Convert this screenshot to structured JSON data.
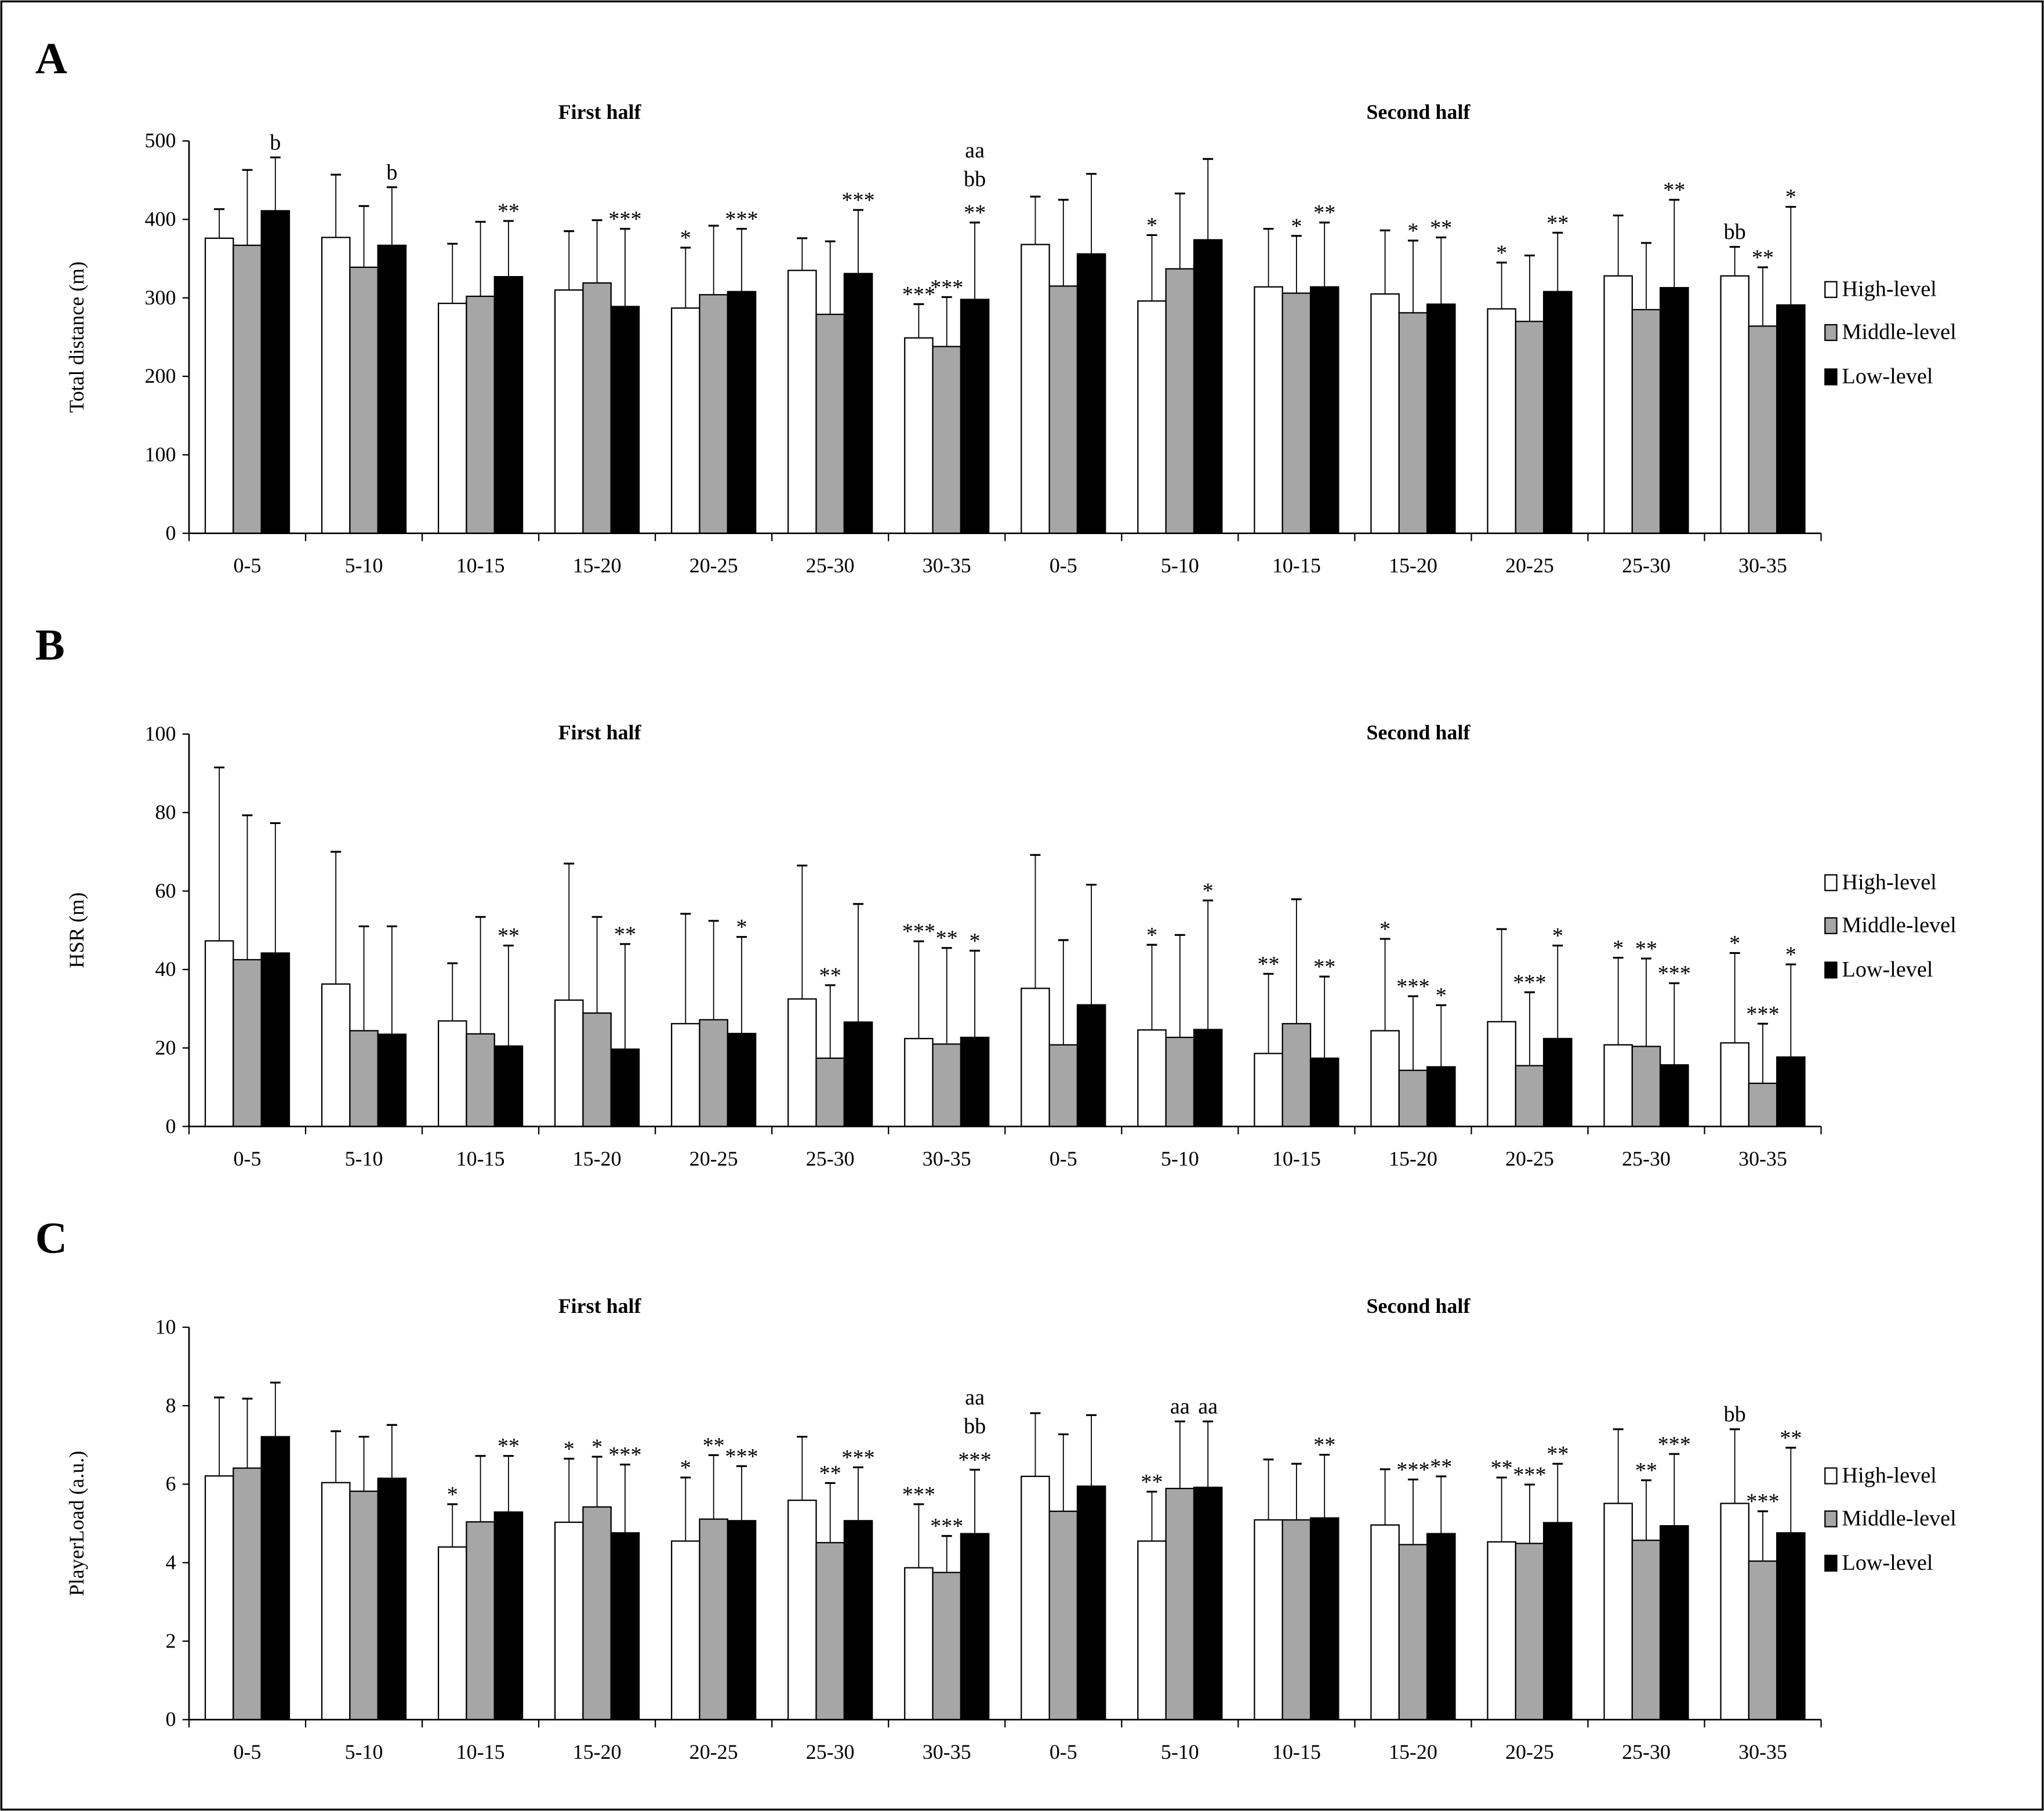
{
  "legend": [
    "High-level",
    "Middle-level",
    "Low-level"
  ],
  "colors": {
    "High-level": "#ffffff",
    "Middle-level": "#a6a6a6",
    "Low-level": "#000000",
    "outline": "#000000"
  },
  "chart_data": [
    {
      "type": "bar",
      "panel": "A",
      "title": "",
      "ylabel": "Total distance (m)",
      "ylim": [
        0,
        500
      ],
      "yticks": [
        0,
        100,
        200,
        300,
        400,
        500
      ],
      "sections": [
        "First half",
        "Second half"
      ],
      "categories": [
        "0-5",
        "5-10",
        "10-15",
        "15-20",
        "20-25",
        "25-30",
        "30-35",
        "0-5",
        "5-10",
        "10-15",
        "15-20",
        "20-25",
        "25-30",
        "30-35"
      ],
      "grid": false,
      "legend_position": "right",
      "series": [
        {
          "name": "High-level",
          "values": [
            376,
            377,
            293,
            310,
            287,
            335,
            249,
            368,
            296,
            314,
            305,
            286,
            328,
            328
          ],
          "error_top": [
            413,
            457,
            369,
            385,
            364,
            376,
            292,
            429,
            380,
            388,
            386,
            345,
            405,
            365
          ],
          "annotations": [
            "",
            "",
            "",
            "",
            "*",
            "",
            "***",
            "",
            "*",
            "",
            "",
            "*",
            "",
            "bb"
          ]
        },
        {
          "name": "Middle-level",
          "values": [
            367,
            339,
            302,
            319,
            304,
            279,
            238,
            315,
            337,
            306,
            281,
            270,
            285,
            264
          ],
          "error_top": [
            463,
            417,
            397,
            399,
            392,
            372,
            301,
            425,
            433,
            379,
            373,
            354,
            370,
            339
          ],
          "annotations": [
            "",
            "",
            "",
            "",
            "",
            "",
            "***",
            "",
            "",
            "*",
            "*",
            "",
            "",
            "**"
          ]
        },
        {
          "name": "Low-level",
          "values": [
            411,
            367,
            327,
            289,
            308,
            331,
            298,
            356,
            374,
            314,
            292,
            308,
            313,
            291
          ],
          "error_top": [
            479,
            441,
            398,
            388,
            388,
            412,
            396,
            458,
            477,
            396,
            377,
            383,
            425,
            416
          ],
          "annotations": [
            "b",
            "b",
            "**",
            "***",
            "***",
            "***",
            "aa bb **",
            "",
            "",
            "**",
            "**",
            "**",
            "**",
            "*"
          ]
        }
      ]
    },
    {
      "type": "bar",
      "panel": "B",
      "title": "",
      "ylabel": "HSR (m)",
      "ylim": [
        0,
        100
      ],
      "yticks": [
        0,
        20,
        40,
        60,
        80,
        100
      ],
      "sections": [
        "First half",
        "Second half"
      ],
      "categories": [
        "0-5",
        "5-10",
        "10-15",
        "15-20",
        "20-25",
        "25-30",
        "30-35",
        "0-5",
        "5-10",
        "10-15",
        "15-20",
        "20-25",
        "25-30",
        "30-35"
      ],
      "grid": false,
      "legend_position": "right",
      "series": [
        {
          "name": "High-level",
          "values": [
            47.3,
            36.3,
            26.9,
            32.2,
            26.2,
            32.5,
            22.4,
            35.2,
            24.6,
            18.6,
            24.4,
            26.7,
            20.8,
            21.3
          ],
          "error_top": [
            91.5,
            70,
            41.6,
            67,
            54.2,
            66.5,
            47.2,
            69.2,
            46.3,
            38.9,
            47.8,
            50.3,
            43,
            44.2
          ],
          "annotations": [
            "",
            "",
            "",
            "",
            "",
            "",
            "***",
            "",
            "*",
            "**",
            "*",
            "",
            "*",
            "*"
          ]
        },
        {
          "name": "Middle-level",
          "values": [
            42.5,
            24.4,
            23.6,
            28.9,
            27.2,
            17.4,
            21.0,
            20.8,
            22.7,
            26.2,
            14.3,
            15.5,
            20.4,
            11.0
          ],
          "error_top": [
            79.3,
            51,
            53.4,
            53.4,
            52.4,
            36,
            45.5,
            47.5,
            48.8,
            57.9,
            33.2,
            34.2,
            42.8,
            26.2
          ],
          "annotations": [
            "",
            "",
            "",
            "",
            "",
            "**",
            "**",
            "",
            "",
            "",
            "***",
            "***",
            "**",
            "***"
          ]
        },
        {
          "name": "Low-level",
          "values": [
            44.2,
            23.5,
            20.5,
            19.7,
            23.7,
            26.6,
            22.7,
            31.0,
            24.7,
            17.4,
            15.2,
            22.4,
            15.7,
            17.7
          ],
          "error_top": [
            77.3,
            51,
            46.1,
            46.5,
            48.3,
            56.7,
            44.8,
            61.6,
            57.6,
            38.2,
            30.9,
            46.1,
            36.5,
            41.3
          ],
          "annotations": [
            "",
            "",
            "**",
            "**",
            "*",
            "",
            "*",
            "",
            "*",
            "**",
            "*",
            "*",
            "***",
            "*"
          ]
        }
      ]
    },
    {
      "type": "bar",
      "panel": "C",
      "title": "",
      "ylabel": "PlayerLoad (a.u.)",
      "ylim": [
        0,
        10
      ],
      "yticks": [
        0,
        2,
        4,
        6,
        8,
        10
      ],
      "sections": [
        "First half",
        "Second half"
      ],
      "categories": [
        "0-5",
        "5-10",
        "10-15",
        "15-20",
        "20-25",
        "25-30",
        "30-35",
        "0-5",
        "5-10",
        "10-15",
        "15-20",
        "20-25",
        "25-30",
        "30-35"
      ],
      "grid": false,
      "legend_position": "right",
      "series": [
        {
          "name": "High-level",
          "values": [
            6.21,
            6.04,
            4.4,
            5.03,
            4.55,
            5.59,
            3.87,
            6.2,
            4.55,
            5.09,
            4.96,
            4.53,
            5.51,
            5.51
          ],
          "error_top": [
            8.21,
            7.35,
            5.49,
            6.65,
            6.17,
            7.21,
            5.49,
            7.81,
            5.81,
            6.63,
            6.38,
            6.17,
            7.4,
            7.4
          ],
          "annotations": [
            "",
            "",
            "*",
            "*",
            "*",
            "",
            "***",
            "",
            "**",
            "",
            "",
            "**",
            "",
            "bb"
          ]
        },
        {
          "name": "Middle-level",
          "values": [
            6.41,
            5.82,
            5.04,
            5.42,
            5.11,
            4.51,
            3.75,
            5.31,
            5.89,
            5.09,
            4.46,
            4.49,
            4.57,
            4.04
          ],
          "error_top": [
            8.18,
            7.21,
            6.72,
            6.7,
            6.74,
            6.03,
            4.68,
            7.27,
            7.6,
            6.52,
            6.12,
            5.99,
            6.1,
            5.31
          ],
          "annotations": [
            "",
            "",
            "",
            "*",
            "**",
            "**",
            "***",
            "",
            "aa",
            "",
            "***",
            "***",
            "**",
            "***"
          ]
        },
        {
          "name": "Low-level",
          "values": [
            7.21,
            6.15,
            5.29,
            4.76,
            5.07,
            5.07,
            4.74,
            5.95,
            5.92,
            5.14,
            4.74,
            5.02,
            4.94,
            4.76
          ],
          "error_top": [
            8.59,
            7.51,
            6.72,
            6.5,
            6.46,
            6.43,
            6.37,
            7.76,
            7.6,
            6.75,
            6.2,
            6.52,
            6.77,
            6.93
          ],
          "annotations": [
            "",
            "",
            "**",
            "***",
            "***",
            "***",
            "aa bb ***",
            "",
            "aa",
            "**",
            "**",
            "**",
            "***",
            "**"
          ]
        }
      ]
    }
  ]
}
